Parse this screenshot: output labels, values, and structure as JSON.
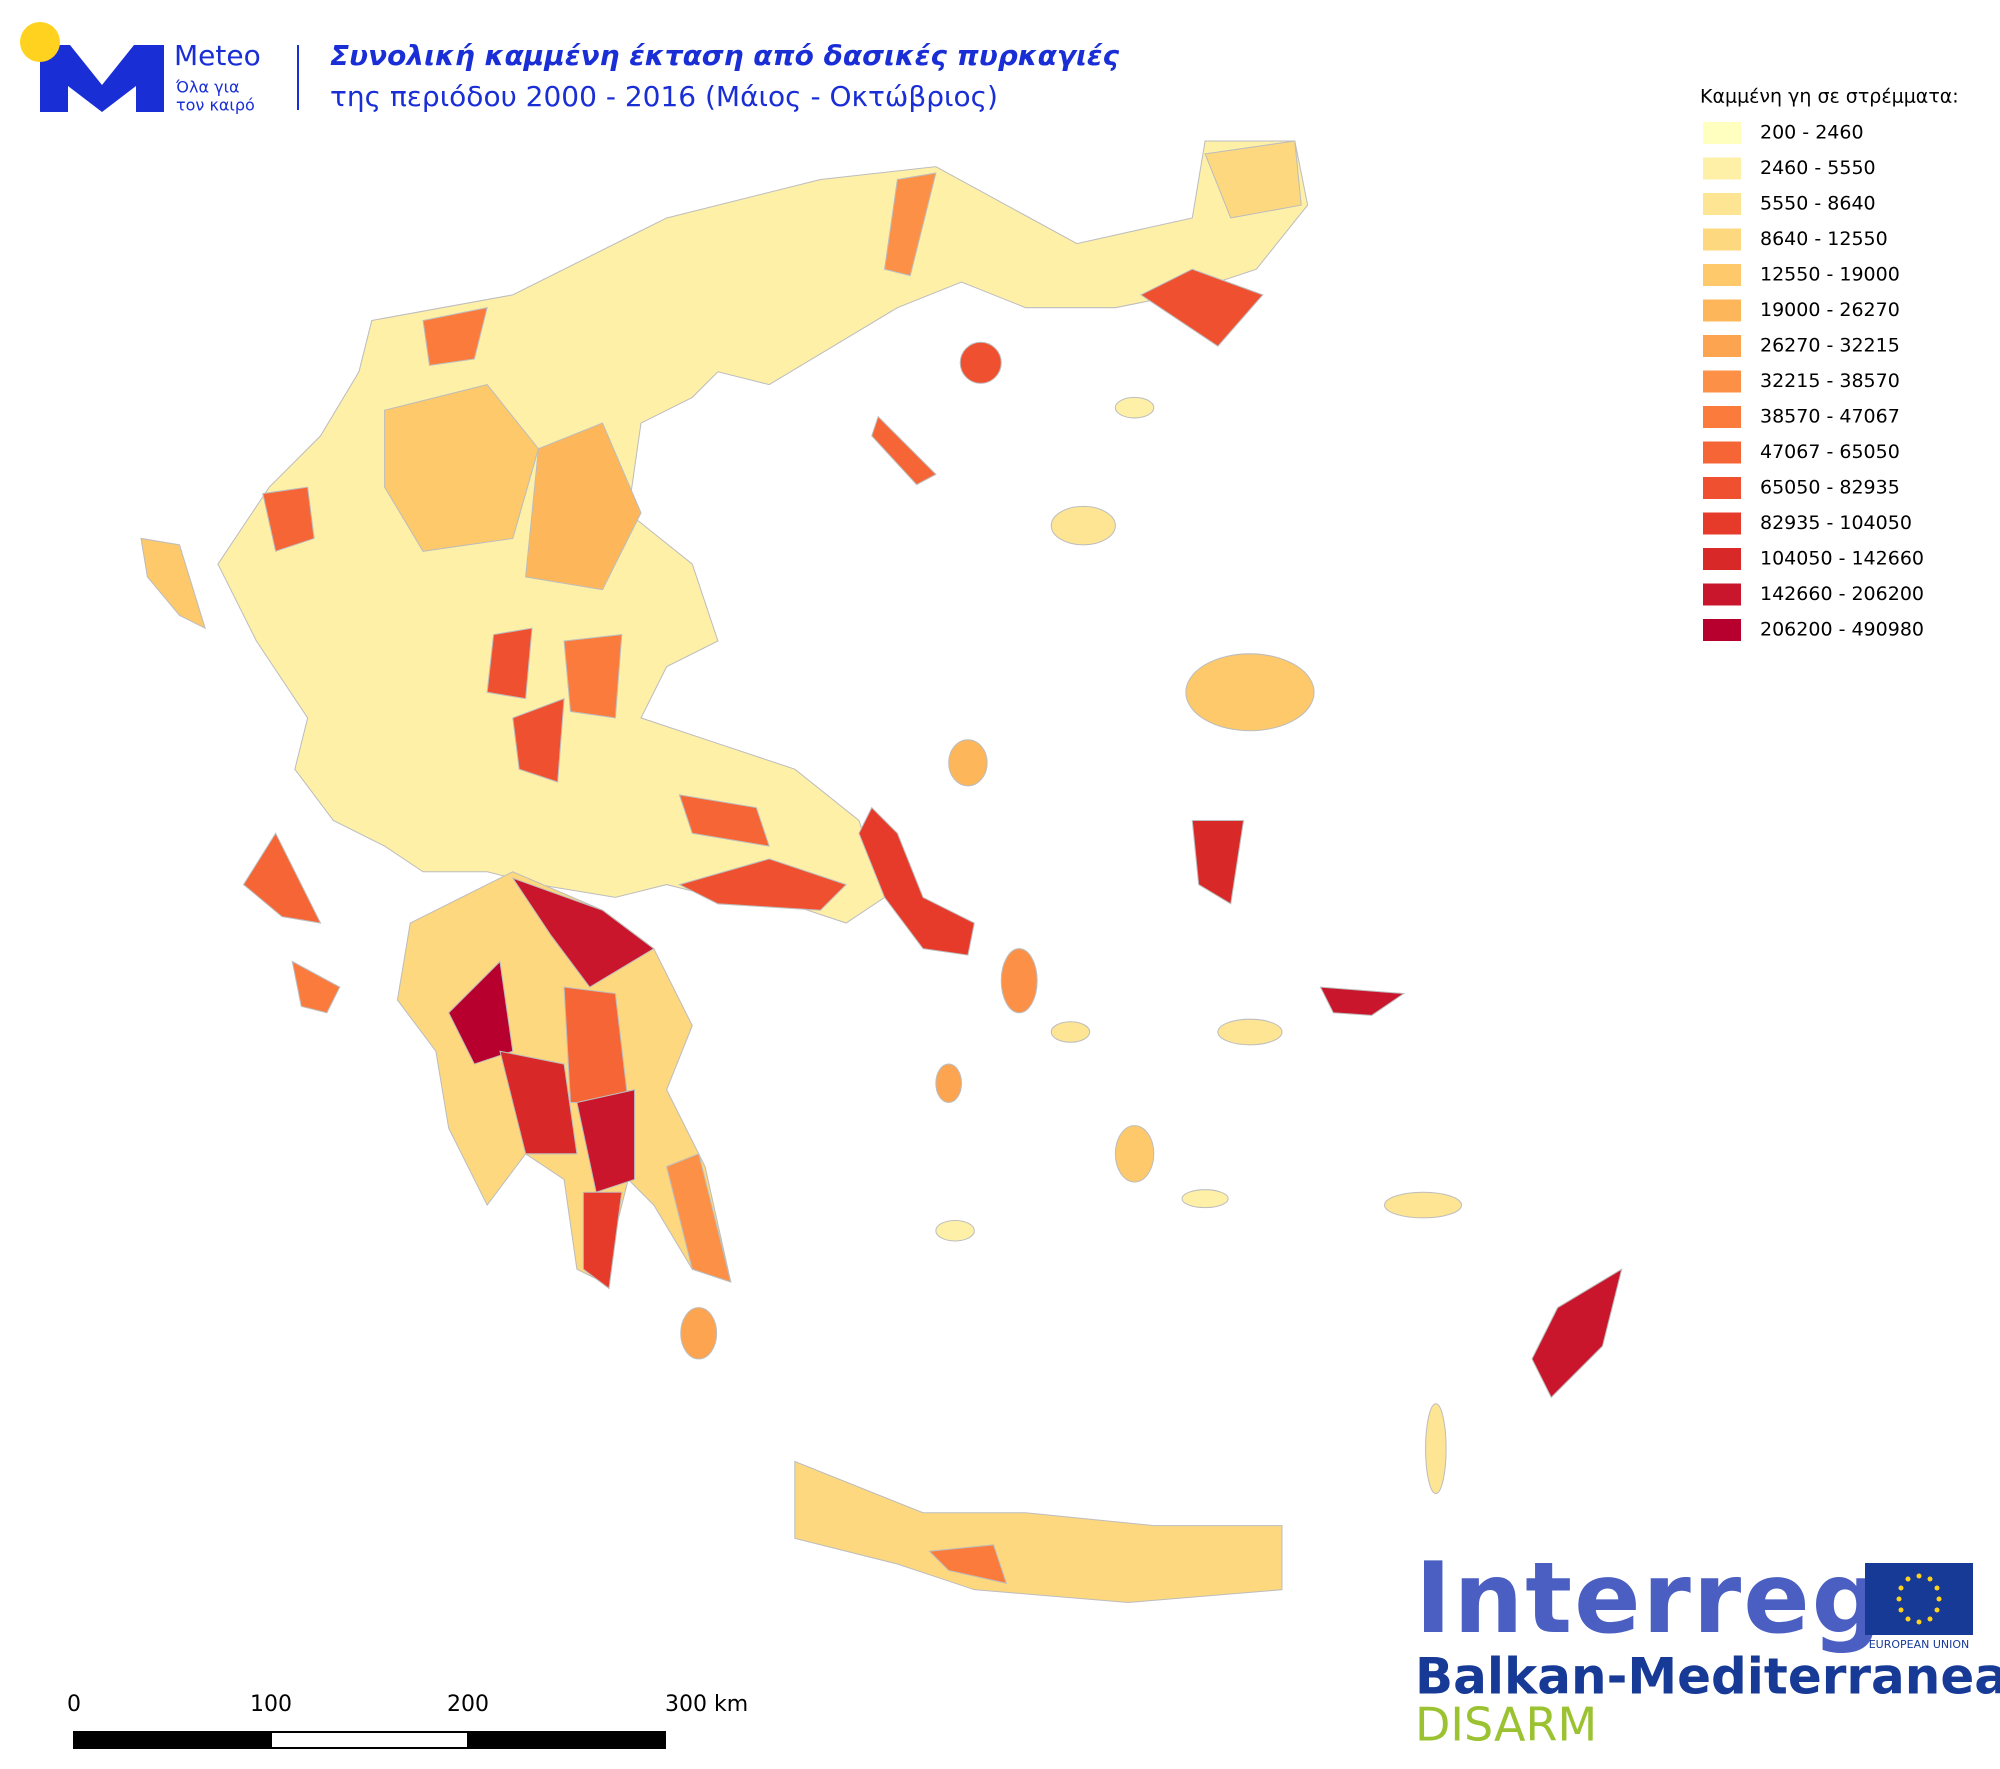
{
  "header": {
    "brand": "Meteo",
    "tagline_1": "Όλα για",
    "tagline_2": "τον καιρό",
    "title": "Συνολική καμμένη έκταση από δασικές πυρκαγιές",
    "subtitle": "της περιόδου 2000 - 2016 (Μάιος - Οκτώβριος)"
  },
  "legend": {
    "title": "Καμμένη γη σε στρέμματα:",
    "items": [
      {
        "label": "200 - 2460",
        "color": "#ffffc0"
      },
      {
        "label": "2460 - 5550",
        "color": "#fff0a8"
      },
      {
        "label": "5550 - 8640",
        "color": "#fee594"
      },
      {
        "label": "8640 - 12550",
        "color": "#fdd87e"
      },
      {
        "label": "12550 - 19000",
        "color": "#fdc96a"
      },
      {
        "label": "19000 - 26270",
        "color": "#fdb75a"
      },
      {
        "label": "26270 - 32215",
        "color": "#fda450"
      },
      {
        "label": "32215 - 38570",
        "color": "#fc9046"
      },
      {
        "label": "38570 - 47067",
        "color": "#fb7b3c"
      },
      {
        "label": "47067 - 65050",
        "color": "#f56535"
      },
      {
        "label": "65050 - 82935",
        "color": "#ef5030"
      },
      {
        "label": "82935 - 104050",
        "color": "#e63b2b"
      },
      {
        "label": "104050 - 142660",
        "color": "#d92828"
      },
      {
        "label": "142660 - 206200",
        "color": "#c9162c"
      },
      {
        "label": "206200 - 490980",
        "color": "#b8002e"
      }
    ]
  },
  "scale_bar": {
    "labels": [
      "0",
      "100",
      "200",
      "300 km"
    ]
  },
  "logos": {
    "interreg": "Interreg",
    "eu": "EUROPEAN UNION",
    "program": "Balkan-Mediterranean",
    "project": "DISARM"
  }
}
